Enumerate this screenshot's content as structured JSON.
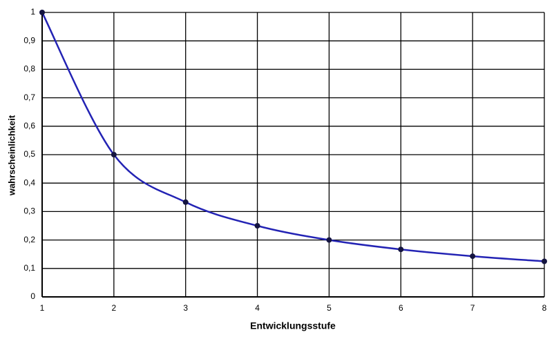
{
  "chart_data": {
    "type": "line",
    "x_label": "Entwicklungsstufe",
    "y_label": "wahrscheinlichkeit",
    "x": [
      1,
      2,
      3,
      4,
      5,
      6,
      7,
      8
    ],
    "series": [
      {
        "name": "wahrscheinlichkeit",
        "color": "#2323b4",
        "values": [
          1,
          0.5,
          0.333,
          0.25,
          0.2,
          0.167,
          0.143,
          0.125
        ]
      }
    ],
    "xlim": [
      1,
      8
    ],
    "xticks": [
      1,
      2,
      3,
      4,
      5,
      6,
      7,
      8
    ],
    "ylim": [
      0,
      1
    ],
    "yticks": [
      0,
      {
        "value": 0.1,
        "label": "0,1"
      },
      {
        "value": 0.2,
        "label": "0,2"
      },
      {
        "value": 0.3,
        "label": "0,3"
      },
      {
        "value": 0.4,
        "label": "0,4"
      },
      {
        "value": 0.5,
        "label": "0,5"
      },
      {
        "value": 0.6,
        "label": "0,6"
      },
      {
        "value": 0.7,
        "label": "0,7"
      },
      {
        "value": 0.8,
        "label": "0,8"
      },
      {
        "value": 0.9,
        "label": "0,9"
      },
      1
    ],
    "grid": true,
    "marker_color": "#141440"
  }
}
